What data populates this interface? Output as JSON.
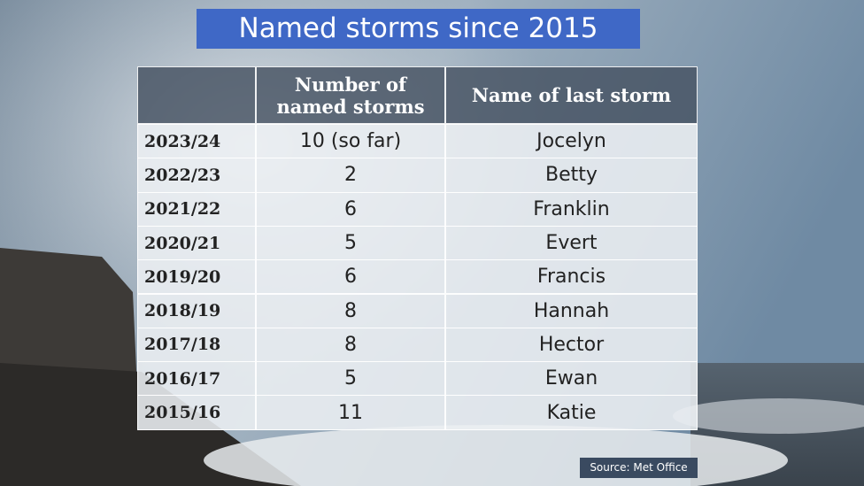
{
  "title": "Named storms since 2015",
  "table": {
    "header": [
      "Number of named storms",
      "Name of last storm"
    ],
    "rows": [
      [
        "2023/24",
        "10 (so far)",
        "Jocelyn"
      ],
      [
        "2022/23",
        2,
        "Betty"
      ],
      [
        "2021/22",
        6,
        "Franklin"
      ],
      [
        "2020/21",
        5,
        "Evert"
      ],
      [
        "2019/20",
        6,
        "Francis"
      ],
      [
        "2018/19",
        8,
        "Hannah"
      ],
      [
        "2017/18",
        8,
        "Hector"
      ],
      [
        "2016/17",
        5,
        "Ewan"
      ],
      [
        "2015/16",
        11,
        "Katie"
      ]
    ]
  },
  "source": "Source: Met Office"
}
